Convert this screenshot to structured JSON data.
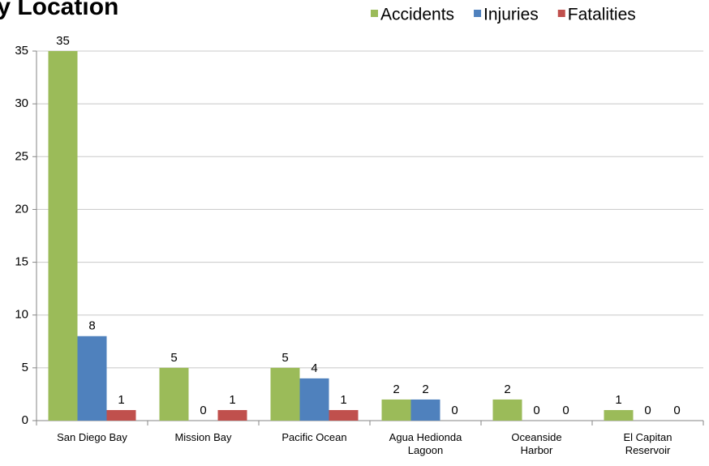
{
  "chart_data": {
    "type": "bar",
    "title": "by Location",
    "categories": [
      "San Diego Bay",
      "Mission Bay",
      "Pacific Ocean",
      "Agua Hedionda Lagoon",
      "Oceanside Harbor",
      "El Capitan Reservoir"
    ],
    "series": [
      {
        "name": "Accidents",
        "color": "#9bbb59",
        "values": [
          35,
          5,
          5,
          2,
          2,
          1
        ]
      },
      {
        "name": "Injuries",
        "color": "#4f81bd",
        "values": [
          8,
          0,
          4,
          2,
          0,
          0
        ]
      },
      {
        "name": "Fatalities",
        "color": "#c0504d",
        "values": [
          1,
          1,
          1,
          0,
          0,
          0
        ]
      }
    ],
    "ylim": [
      0,
      35
    ],
    "yticks": [
      0,
      5,
      10,
      15,
      20,
      25,
      30,
      35
    ],
    "grid": true,
    "legend": "top-right"
  }
}
